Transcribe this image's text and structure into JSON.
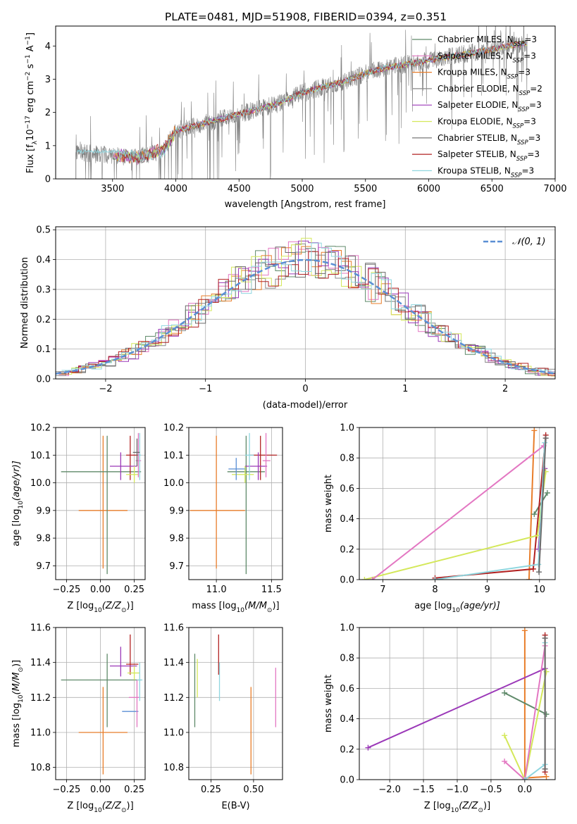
{
  "figure": {
    "title": "PLATE=0481, MJD=51908, FIBERID=0394, z=0.351"
  },
  "chart_data": [
    {
      "id": "spectrum",
      "type": "line",
      "xlabel": "wavelength [Angstrom, rest frame]",
      "ylabel": "Flux [f",
      "ylabel_parts": [
        "λ",
        "10",
        "−17",
        " erg cm",
        "−2",
        " s",
        "−1",
        " A",
        "−1",
        "]"
      ],
      "xlim": [
        3050,
        7000
      ],
      "ylim": [
        0,
        4.6
      ],
      "xticks": [
        3500,
        4000,
        4500,
        5000,
        5500,
        6000,
        6500,
        7000
      ],
      "yticks": [
        0,
        1,
        2,
        3,
        4
      ],
      "grid": false,
      "legend_position": "top-right",
      "data_range": [
        3210,
        6780
      ],
      "observed_continuum": [
        [
          3210,
          0.8
        ],
        [
          3500,
          0.7
        ],
        [
          3700,
          0.65
        ],
        [
          3900,
          0.85
        ],
        [
          4000,
          1.45
        ],
        [
          4300,
          1.75
        ],
        [
          4500,
          1.95
        ],
        [
          4800,
          2.25
        ],
        [
          5000,
          2.6
        ],
        [
          5300,
          2.9
        ],
        [
          5600,
          3.3
        ],
        [
          5900,
          3.5
        ],
        [
          6200,
          3.7
        ],
        [
          6500,
          3.9
        ],
        [
          6780,
          4.1
        ]
      ],
      "series": [
        {
          "name": "Chabrier MILES",
          "nssp": "3",
          "color": "#5f8a6a"
        },
        {
          "name": "Salpeter MILES",
          "nssp": "3",
          "color": "#e377c2"
        },
        {
          "name": "Kroupa MILES",
          "nssp": "3",
          "color": "#e87d2a"
        },
        {
          "name": "Chabrier ELODIE",
          "nssp": "2",
          "color": "#888888"
        },
        {
          "name": "Salpeter ELODIE",
          "nssp": "3",
          "color": "#9b38b8"
        },
        {
          "name": "Kroupa ELODIE",
          "nssp": "3",
          "color": "#d4e85a"
        },
        {
          "name": "Chabrier STELIB",
          "nssp": "3",
          "color": "#6a6a6a"
        },
        {
          "name": "Salpeter STELIB",
          "nssp": "3",
          "color": "#b22222"
        },
        {
          "name": "Kroupa STELIB",
          "nssp": "3",
          "color": "#8fd6df"
        }
      ],
      "legend_label_sub": "SSP"
    },
    {
      "id": "residuals",
      "type": "line",
      "xlabel": "(data-model)/error",
      "ylabel": "Normed distribution",
      "xlim": [
        -2.5,
        2.5
      ],
      "ylim": [
        0,
        0.51
      ],
      "xticks": [
        -2,
        -1,
        0,
        1,
        2
      ],
      "xtick_labels": [
        "−2",
        "−1",
        "0",
        "1",
        "2"
      ],
      "yticks": [
        0.0,
        0.1,
        0.2,
        0.3,
        0.4,
        0.5
      ],
      "ytick_labels": [
        "0.0",
        "0.1",
        "0.2",
        "0.3",
        "0.4",
        "0.5"
      ],
      "grid": true,
      "legend_position": "top-right",
      "legend_label": "𝒩(0, 1)",
      "gaussian": {
        "mean": 0,
        "sigma": 1,
        "color": "#5b8fd4"
      },
      "bin_width": 0.1
    },
    {
      "id": "age-vs-Z",
      "type": "scatter",
      "xlabel": "Z [log",
      "xlabel_parts": [
        "10",
        "(Z/Z",
        "⊙",
        ")]"
      ],
      "ylabel": "age  [log",
      "ylabel_parts": [
        "10",
        "(age/yr)]"
      ],
      "xlim": [
        -0.33,
        0.33
      ],
      "ylim": [
        9.65,
        10.2
      ],
      "xticks": [
        -0.25,
        0.0,
        0.25
      ],
      "xtick_labels": [
        "−0.25",
        "0.00",
        "0.25"
      ],
      "yticks": [
        9.7,
        9.8,
        9.9,
        10.0,
        10.1,
        10.2
      ],
      "ytick_labels": [
        "9.7",
        "9.8",
        "9.9",
        "10.0",
        "10.1",
        "10.2"
      ],
      "grid": true,
      "points": [
        {
          "x": 0.02,
          "y": 9.9,
          "xerr": [
            0.18,
            0.18
          ],
          "yerr": [
            0.21,
            0.27
          ],
          "color": "#e87d2a"
        },
        {
          "x": 0.05,
          "y": 10.04,
          "xerr": [
            0.34,
            0.25
          ],
          "yerr": [
            0.37,
            0.13
          ],
          "color": "#5f8a6a"
        },
        {
          "x": 0.22,
          "y": 10.1,
          "xerr": [
            0.03,
            0.07
          ],
          "yerr": [
            0.09,
            0.07
          ],
          "color": "#b22222"
        },
        {
          "x": 0.15,
          "y": 10.06,
          "xerr": [
            0.08,
            0.12
          ],
          "yerr": [
            0.05,
            0.05
          ],
          "color": "#9b38b8"
        },
        {
          "x": 0.25,
          "y": 10.03,
          "xerr": [
            0.06,
            0.03
          ],
          "yerr": [
            0.03,
            0.03
          ],
          "color": "#d4e85a"
        },
        {
          "x": 0.28,
          "y": 10.08,
          "xerr": [
            0.02,
            0.02
          ],
          "yerr": [
            0.06,
            0.1
          ],
          "color": "#e377c2"
        },
        {
          "x": 0.29,
          "y": 10.1,
          "xerr": [
            0.01,
            0.01
          ],
          "yerr": [
            0.09,
            0.08
          ],
          "color": "#8fd6df"
        },
        {
          "x": 0.27,
          "y": 10.11,
          "xerr": [
            0.03,
            0.02
          ],
          "yerr": [
            0.05,
            0.05
          ],
          "color": "#6a6a6a"
        }
      ]
    },
    {
      "id": "age-vs-mass",
      "type": "scatter",
      "xlabel": "mass [log",
      "xlabel_parts": [
        "10",
        "(M/M",
        "⊙",
        ")]"
      ],
      "xlim": [
        10.75,
        11.6
      ],
      "ylim": [
        9.65,
        10.2
      ],
      "xticks": [
        11.0,
        11.5
      ],
      "xtick_labels": [
        "11.0",
        "11.5"
      ],
      "yticks": [
        9.7,
        9.8,
        9.9,
        10.0,
        10.1,
        10.2
      ],
      "ytick_labels": [
        "9.7",
        "9.8",
        "9.9",
        "10.0",
        "10.1",
        "10.2"
      ],
      "grid": true,
      "points": [
        {
          "x": 11.0,
          "y": 9.9,
          "xerr": [
            0.24,
            0.26
          ],
          "yerr": [
            0.21,
            0.27
          ],
          "color": "#e87d2a"
        },
        {
          "x": 11.27,
          "y": 10.04,
          "xerr": [
            0.17,
            0.17
          ],
          "yerr": [
            0.37,
            0.13
          ],
          "color": "#5f8a6a"
        },
        {
          "x": 11.4,
          "y": 10.1,
          "xerr": [
            0.1,
            0.15
          ],
          "yerr": [
            0.09,
            0.07
          ],
          "color": "#b22222"
        },
        {
          "x": 11.38,
          "y": 10.06,
          "xerr": [
            0.12,
            0.08
          ],
          "yerr": [
            0.05,
            0.05
          ],
          "color": "#9b38b8"
        },
        {
          "x": 11.26,
          "y": 10.03,
          "xerr": [
            0.12,
            0.08
          ],
          "yerr": [
            0.03,
            0.03
          ],
          "color": "#d4e85a"
        },
        {
          "x": 11.18,
          "y": 10.05,
          "xerr": [
            0.07,
            0.08
          ],
          "yerr": [
            0.04,
            0.04
          ],
          "color": "#5b8fd4"
        },
        {
          "x": 11.45,
          "y": 10.08,
          "xerr": [
            0.03,
            0.04
          ],
          "yerr": [
            0.06,
            0.1
          ],
          "color": "#e377c2"
        },
        {
          "x": 11.3,
          "y": 10.1,
          "xerr": [
            0.04,
            0.04
          ],
          "yerr": [
            0.09,
            0.08
          ],
          "color": "#8fd6df"
        }
      ]
    },
    {
      "id": "massweight-vs-age",
      "type": "line",
      "xlabel": "age  [log",
      "xlabel_parts": [
        "10",
        "(age/yr)]"
      ],
      "ylabel": "mass weight",
      "xlim": [
        6.55,
        10.3
      ],
      "ylim": [
        0,
        1.0
      ],
      "xticks": [
        7,
        8,
        9,
        10
      ],
      "yticks": [
        0.0,
        0.2,
        0.4,
        0.6,
        0.8,
        1.0
      ],
      "ytick_labels": [
        "0.0",
        "0.2",
        "0.4",
        "0.6",
        "0.8",
        "1.0"
      ],
      "grid": true,
      "series": [
        {
          "color": "#e87d2a",
          "points": [
            [
              9.8,
              0.0
            ],
            [
              9.9,
              0.98
            ]
          ]
        },
        {
          "color": "#5f8a6a",
          "points": [
            [
              9.9,
              0.43
            ],
            [
              10.15,
              0.57
            ]
          ]
        },
        {
          "color": "#b22222",
          "points": [
            [
              8.0,
              0.01
            ],
            [
              9.88,
              0.07
            ],
            [
              10.12,
              0.95
            ]
          ]
        },
        {
          "color": "#9b38b8",
          "points": [
            [
              9.98,
              0.2
            ],
            [
              10.1,
              0.73
            ]
          ]
        },
        {
          "color": "#d4e85a",
          "points": [
            [
              6.65,
              0.0
            ],
            [
              9.96,
              0.29
            ],
            [
              10.12,
              0.71
            ]
          ]
        },
        {
          "color": "#e377c2",
          "points": [
            [
              6.8,
              0.0
            ],
            [
              10.08,
              0.88
            ]
          ]
        },
        {
          "color": "#8fd6df",
          "points": [
            [
              8.0,
              0.0
            ],
            [
              9.98,
              0.1
            ],
            [
              10.1,
              0.9
            ]
          ]
        },
        {
          "color": "#6a6a6a",
          "points": [
            [
              9.99,
              0.05
            ],
            [
              10.12,
              0.93
            ]
          ]
        }
      ]
    },
    {
      "id": "mass-vs-Z",
      "type": "scatter",
      "xlabel": "Z [log",
      "xlabel_parts": [
        "10",
        "(Z/Z",
        "⊙",
        ")]"
      ],
      "ylabel": "mass [log",
      "ylabel_parts": [
        "10",
        "(M/M",
        "⊙",
        ")]"
      ],
      "xlim": [
        -0.33,
        0.33
      ],
      "ylim": [
        10.73,
        11.6
      ],
      "xticks": [
        -0.25,
        0.0,
        0.25
      ],
      "xtick_labels": [
        "−0.25",
        "0.00",
        "0.25"
      ],
      "yticks": [
        10.8,
        11.0,
        11.2,
        11.4,
        11.6
      ],
      "ytick_labels": [
        "10.8",
        "11.0",
        "11.2",
        "11.4",
        "11.6"
      ],
      "grid": true,
      "points": [
        {
          "x": 0.02,
          "y": 11.0,
          "xerr": [
            0.18,
            0.18
          ],
          "yerr": [
            0.24,
            0.26
          ],
          "color": "#e87d2a"
        },
        {
          "x": 0.05,
          "y": 11.3,
          "xerr": [
            0.34,
            0.25
          ],
          "yerr": [
            0.27,
            0.15
          ],
          "color": "#5f8a6a"
        },
        {
          "x": 0.22,
          "y": 11.39,
          "xerr": [
            0.03,
            0.06
          ],
          "yerr": [
            0.06,
            0.17
          ],
          "color": "#b22222"
        },
        {
          "x": 0.15,
          "y": 11.38,
          "xerr": [
            0.08,
            0.12
          ],
          "yerr": [
            0.06,
            0.11
          ],
          "color": "#9b38b8"
        },
        {
          "x": 0.25,
          "y": 11.34,
          "xerr": [
            0.05,
            0.04
          ],
          "yerr": [
            0.04,
            0.04
          ],
          "color": "#d4e85a"
        },
        {
          "x": 0.22,
          "y": 11.12,
          "xerr": [
            0.06,
            0.06
          ],
          "yerr": [
            0.0,
            0.0
          ],
          "color": "#5b8fd4"
        },
        {
          "x": 0.27,
          "y": 11.2,
          "xerr": [
            0.06,
            0.02
          ],
          "yerr": [
            0.17,
            0.1
          ],
          "color": "#e377c2"
        },
        {
          "x": 0.29,
          "y": 11.3,
          "xerr": [
            0.02,
            0.02
          ],
          "yerr": [
            0.12,
            0.1
          ],
          "color": "#8fd6df"
        }
      ]
    },
    {
      "id": "mass-vs-EBV",
      "type": "scatter",
      "xlabel": "E(B-V)",
      "xlim": [
        0.12,
        0.67
      ],
      "ylim": [
        10.73,
        11.6
      ],
      "xticks": [
        0.25,
        0.5
      ],
      "xtick_labels": [
        "0.25",
        "0.50"
      ],
      "yticks": [
        10.8,
        11.0,
        11.2,
        11.4,
        11.6
      ],
      "ytick_labels": [
        "10.8",
        "11.0",
        "11.2",
        "11.4",
        "11.6"
      ],
      "grid": true,
      "points": [
        {
          "x": 0.485,
          "y": 11.0,
          "xerr": [
            0,
            0
          ],
          "yerr": [
            0.24,
            0.26
          ],
          "color": "#e87d2a"
        },
        {
          "x": 0.155,
          "y": 11.3,
          "xerr": [
            0,
            0
          ],
          "yerr": [
            0.27,
            0.15
          ],
          "color": "#5f8a6a"
        },
        {
          "x": 0.295,
          "y": 11.39,
          "xerr": [
            0,
            0
          ],
          "yerr": [
            0.06,
            0.17
          ],
          "color": "#b22222"
        },
        {
          "x": 0.17,
          "y": 11.34,
          "xerr": [
            0,
            0
          ],
          "yerr": [
            0.14,
            0.08
          ],
          "color": "#d4e85a"
        },
        {
          "x": 0.63,
          "y": 11.2,
          "xerr": [
            0,
            0
          ],
          "yerr": [
            0.17,
            0.17
          ],
          "color": "#e377c2"
        },
        {
          "x": 0.3,
          "y": 11.3,
          "xerr": [
            0,
            0
          ],
          "yerr": [
            0.12,
            0.1
          ],
          "color": "#8fd6df"
        }
      ]
    },
    {
      "id": "massweight-vs-Z",
      "type": "line",
      "xlabel": "Z [log",
      "xlabel_parts": [
        "10",
        "(Z/Z",
        "⊙",
        ")]"
      ],
      "ylabel": "mass weight",
      "xlim": [
        -2.45,
        0.45
      ],
      "ylim": [
        0,
        1.0
      ],
      "xticks": [
        -2.0,
        -1.5,
        -1.0,
        -0.5,
        0.0
      ],
      "xtick_labels": [
        "−2.0",
        "−1.5",
        "−1.0",
        "−0.5",
        "0.0"
      ],
      "yticks": [
        0.0,
        0.2,
        0.4,
        0.6,
        0.8,
        1.0
      ],
      "ytick_labels": [
        "0.0",
        "0.2",
        "0.4",
        "0.6",
        "0.8",
        "1.0"
      ],
      "grid": true,
      "series": [
        {
          "color": "#e87d2a",
          "points": [
            [
              0.0,
              0.98
            ],
            [
              0.0,
              0.01
            ],
            [
              0.32,
              0.02
            ]
          ]
        },
        {
          "color": "#9b38b8",
          "points": [
            [
              -2.32,
              0.21
            ],
            [
              0.3,
              0.73
            ]
          ]
        },
        {
          "color": "#5f8a6a",
          "points": [
            [
              -0.3,
              0.57
            ],
            [
              0.32,
              0.43
            ]
          ]
        },
        {
          "color": "#d4e85a",
          "points": [
            [
              -0.3,
              0.29
            ],
            [
              0.0,
              0.0
            ],
            [
              0.32,
              0.71
            ]
          ]
        },
        {
          "color": "#e377c2",
          "points": [
            [
              -0.3,
              0.12
            ],
            [
              0.0,
              0.0
            ],
            [
              0.3,
              0.88
            ]
          ]
        },
        {
          "color": "#b22222",
          "points": [
            [
              0.3,
              0.05
            ],
            [
              0.3,
              0.95
            ]
          ]
        },
        {
          "color": "#8fd6df",
          "points": [
            [
              0.0,
              0.0
            ],
            [
              0.3,
              0.1
            ],
            [
              0.3,
              0.9
            ]
          ]
        },
        {
          "color": "#6a6a6a",
          "points": [
            [
              0.3,
              0.07
            ],
            [
              0.3,
              0.93
            ]
          ]
        }
      ]
    }
  ]
}
